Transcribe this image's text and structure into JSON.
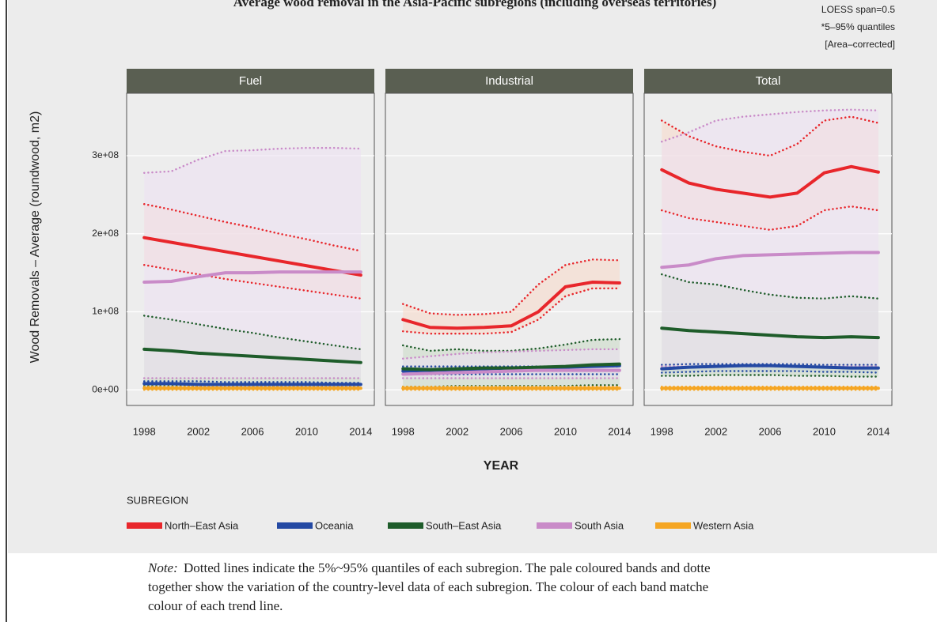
{
  "chart_data": {
    "type": "line",
    "title": "Average wood removal in the Asia-Pacific subregions (including overseas territories)",
    "annotations": [
      "LOESS span=0.5",
      "*5–95% quantiles",
      "[Area–corrected]"
    ],
    "y_label": "Wood Removals – Average (roundwood, m2)",
    "x_label": "YEAR",
    "legend_title": "SUBREGION",
    "series_names": [
      "North–East Asia",
      "Oceania",
      "South–East Asia",
      "South Asia",
      "Western Asia"
    ],
    "colors": [
      "#e8262b",
      "#2449a3",
      "#1e5c2a",
      "#c98bc8",
      "#f5a623"
    ],
    "x": [
      1998,
      2000,
      2002,
      2004,
      2006,
      2008,
      2010,
      2012,
      2014
    ],
    "xlim": [
      1996.7,
      2015
    ],
    "xticks": [
      1998,
      2002,
      2006,
      2010,
      2014
    ],
    "ylim": [
      -20000000.0,
      380000000.0
    ],
    "yticks": [
      {
        "value": 0,
        "label": "0e+00"
      },
      {
        "value": 100000000.0,
        "label": "1e+08"
      },
      {
        "value": 200000000.0,
        "label": "2e+08"
      },
      {
        "value": 300000000.0,
        "label": "3e+08"
      }
    ],
    "grid": true,
    "panels": [
      {
        "name": "Fuel",
        "values": [
          [
            195000000.0,
            189000000.0,
            183000000.0,
            177000000.0,
            171000000.0,
            165000000.0,
            159000000.0,
            153000000.0,
            147000000.0
          ],
          [
            8000000.0,
            8000000.0,
            7000000.0,
            7000000.0,
            7000000.0,
            7000000.0,
            7000000.0,
            7000000.0,
            7000000.0
          ],
          [
            52000000.0,
            50000000.0,
            47000000.0,
            45000000.0,
            43000000.0,
            41000000.0,
            39000000.0,
            37000000.0,
            35000000.0
          ],
          [
            138000000.0,
            139000000.0,
            145000000.0,
            150000000.0,
            150000000.0,
            151000000.0,
            151000000.0,
            151000000.0,
            151000000.0
          ],
          [
            2000000.0,
            2000000.0,
            2000000.0,
            2000000.0,
            2000000.0,
            2000000.0,
            2000000.0,
            2000000.0,
            2000000.0
          ]
        ],
        "upper": [
          [
            238000000.0,
            231000000.0,
            223000000.0,
            215000000.0,
            208000000.0,
            200000000.0,
            193000000.0,
            185000000.0,
            178000000.0
          ],
          [
            11000000.0,
            11000000.0,
            11000000.0,
            10000000.0,
            10000000.0,
            10000000.0,
            10000000.0,
            9000000.0,
            9000000.0
          ],
          [
            95000000.0,
            90000000.0,
            84000000.0,
            78000000.0,
            73000000.0,
            67000000.0,
            62000000.0,
            57000000.0,
            52000000.0
          ],
          [
            278000000.0,
            280000000.0,
            295000000.0,
            306000000.0,
            307000000.0,
            309000000.0,
            310000000.0,
            310000000.0,
            309000000.0
          ],
          [
            4000000.0,
            4000000.0,
            4000000.0,
            4000000.0,
            4000000.0,
            4000000.0,
            4000000.0,
            4000000.0,
            4000000.0
          ]
        ],
        "lower": [
          [
            160000000.0,
            154000000.0,
            148000000.0,
            142000000.0,
            137000000.0,
            132000000.0,
            127000000.0,
            122000000.0,
            117000000.0
          ],
          [
            4000000.0,
            4000000.0,
            4000000.0,
            4000000.0,
            4000000.0,
            4000000.0,
            4000000.0,
            4000000.0,
            4000000.0
          ],
          [
            5000000.0,
            5000000.0,
            5000000.0,
            5000000.0,
            5000000.0,
            5000000.0,
            5000000.0,
            5000000.0,
            5000000.0
          ],
          [
            15000000.0,
            15000000.0,
            15000000.0,
            15000000.0,
            15000000.0,
            15000000.0,
            15000000.0,
            15000000.0,
            15000000.0
          ],
          [
            0,
            0,
            0,
            0,
            0,
            0,
            0,
            0,
            0
          ]
        ]
      },
      {
        "name": "Industrial",
        "values": [
          [
            90000000.0,
            80000000.0,
            79000000.0,
            80000000.0,
            82000000.0,
            100000000.0,
            132000000.0,
            138000000.0,
            137000000.0
          ],
          [
            24000000.0,
            25000000.0,
            26000000.0,
            27000000.0,
            28000000.0,
            28000000.0,
            29000000.0,
            30000000.0,
            31000000.0
          ],
          [
            27000000.0,
            26000000.0,
            27000000.0,
            28000000.0,
            28000000.0,
            29000000.0,
            30000000.0,
            32000000.0,
            33000000.0
          ],
          [
            20000000.0,
            21000000.0,
            22000000.0,
            23000000.0,
            24000000.0,
            25000000.0,
            25000000.0,
            25000000.0,
            25000000.0
          ],
          [
            2000000.0,
            2000000.0,
            2000000.0,
            2000000.0,
            2000000.0,
            2000000.0,
            2000000.0,
            2000000.0,
            2000000.0
          ]
        ],
        "upper": [
          [
            110000000.0,
            98000000.0,
            96000000.0,
            97000000.0,
            100000000.0,
            135000000.0,
            160000000.0,
            167000000.0,
            166000000.0
          ],
          [
            30000000.0,
            30000000.0,
            30000000.0,
            30000000.0,
            30000000.0,
            30000000.0,
            30000000.0,
            30000000.0,
            30000000.0
          ],
          [
            57000000.0,
            50000000.0,
            52000000.0,
            50000000.0,
            50000000.0,
            53000000.0,
            58000000.0,
            64000000.0,
            65000000.0
          ],
          [
            40000000.0,
            43000000.0,
            46000000.0,
            48000000.0,
            49000000.0,
            50000000.0,
            51000000.0,
            52000000.0,
            52000000.0
          ],
          [
            4000000.0,
            4000000.0,
            4000000.0,
            4000000.0,
            4000000.0,
            4000000.0,
            4000000.0,
            4000000.0,
            4000000.0
          ]
        ],
        "lower": [
          [
            75000000.0,
            72000000.0,
            72000000.0,
            72000000.0,
            74000000.0,
            90000000.0,
            120000000.0,
            130000000.0,
            130000000.0
          ],
          [
            20000000.0,
            20000000.0,
            20000000.0,
            20000000.0,
            20000000.0,
            20000000.0,
            20000000.0,
            20000000.0,
            20000000.0
          ],
          [
            4000000.0,
            4000000.0,
            5000000.0,
            5000000.0,
            5000000.0,
            5000000.0,
            5000000.0,
            6000000.0,
            6000000.0
          ],
          [
            15000000.0,
            15000000.0,
            15000000.0,
            15000000.0,
            15000000.0,
            15000000.0,
            15000000.0,
            15000000.0,
            15000000.0
          ],
          [
            0,
            0,
            0,
            0,
            0,
            0,
            0,
            0,
            0
          ]
        ]
      },
      {
        "name": "Total",
        "values": [
          [
            282000000.0,
            265000000.0,
            257000000.0,
            252000000.0,
            247000000.0,
            252000000.0,
            278000000.0,
            286000000.0,
            279000000.0
          ],
          [
            27000000.0,
            29000000.0,
            30000000.0,
            31000000.0,
            31000000.0,
            30000000.0,
            29000000.0,
            28000000.0,
            28000000.0
          ],
          [
            79000000.0,
            76000000.0,
            74000000.0,
            72000000.0,
            70000000.0,
            68000000.0,
            67000000.0,
            68000000.0,
            67000000.0
          ],
          [
            157000000.0,
            160000000.0,
            168000000.0,
            172000000.0,
            173000000.0,
            174000000.0,
            175000000.0,
            176000000.0,
            176000000.0
          ],
          [
            2000000.0,
            2000000.0,
            2000000.0,
            2000000.0,
            2000000.0,
            2000000.0,
            2000000.0,
            2000000.0,
            2000000.0
          ]
        ],
        "upper": [
          [
            345000000.0,
            325000000.0,
            312000000.0,
            305000000.0,
            300000000.0,
            315000000.0,
            345000000.0,
            350000000.0,
            342000000.0
          ],
          [
            32000000.0,
            33000000.0,
            33000000.0,
            33000000.0,
            33000000.0,
            33000000.0,
            32000000.0,
            32000000.0,
            32000000.0
          ],
          [
            148000000.0,
            138000000.0,
            135000000.0,
            128000000.0,
            122000000.0,
            118000000.0,
            117000000.0,
            120000000.0,
            117000000.0
          ],
          [
            318000000.0,
            330000000.0,
            345000000.0,
            350000000.0,
            353000000.0,
            356000000.0,
            358000000.0,
            359000000.0,
            358000000.0
          ],
          [
            4000000.0,
            4000000.0,
            4000000.0,
            4000000.0,
            4000000.0,
            4000000.0,
            4000000.0,
            4000000.0,
            4000000.0
          ]
        ],
        "lower": [
          [
            230000000.0,
            220000000.0,
            215000000.0,
            210000000.0,
            205000000.0,
            210000000.0,
            230000000.0,
            235000000.0,
            230000000.0
          ],
          [
            22000000.0,
            23000000.0,
            24000000.0,
            24000000.0,
            24000000.0,
            24000000.0,
            23000000.0,
            23000000.0,
            22000000.0
          ],
          [
            18000000.0,
            18000000.0,
            19000000.0,
            19000000.0,
            19000000.0,
            18000000.0,
            18000000.0,
            17000000.0,
            17000000.0
          ],
          [
            30000000.0,
            30000000.0,
            30000000.0,
            30000000.0,
            30000000.0,
            30000000.0,
            30000000.0,
            30000000.0,
            30000000.0
          ],
          [
            0,
            0,
            0,
            0,
            0,
            0,
            0,
            0,
            0
          ]
        ]
      }
    ]
  },
  "note": {
    "label": "Note:",
    "lines": [
      "Dotted lines indicate the 5%~95% quantiles of each subregion. The pale coloured bands and dotte",
      "together show the variation of the country-level data of each subregion. The colour of each band matche",
      "colour of each trend line."
    ]
  }
}
